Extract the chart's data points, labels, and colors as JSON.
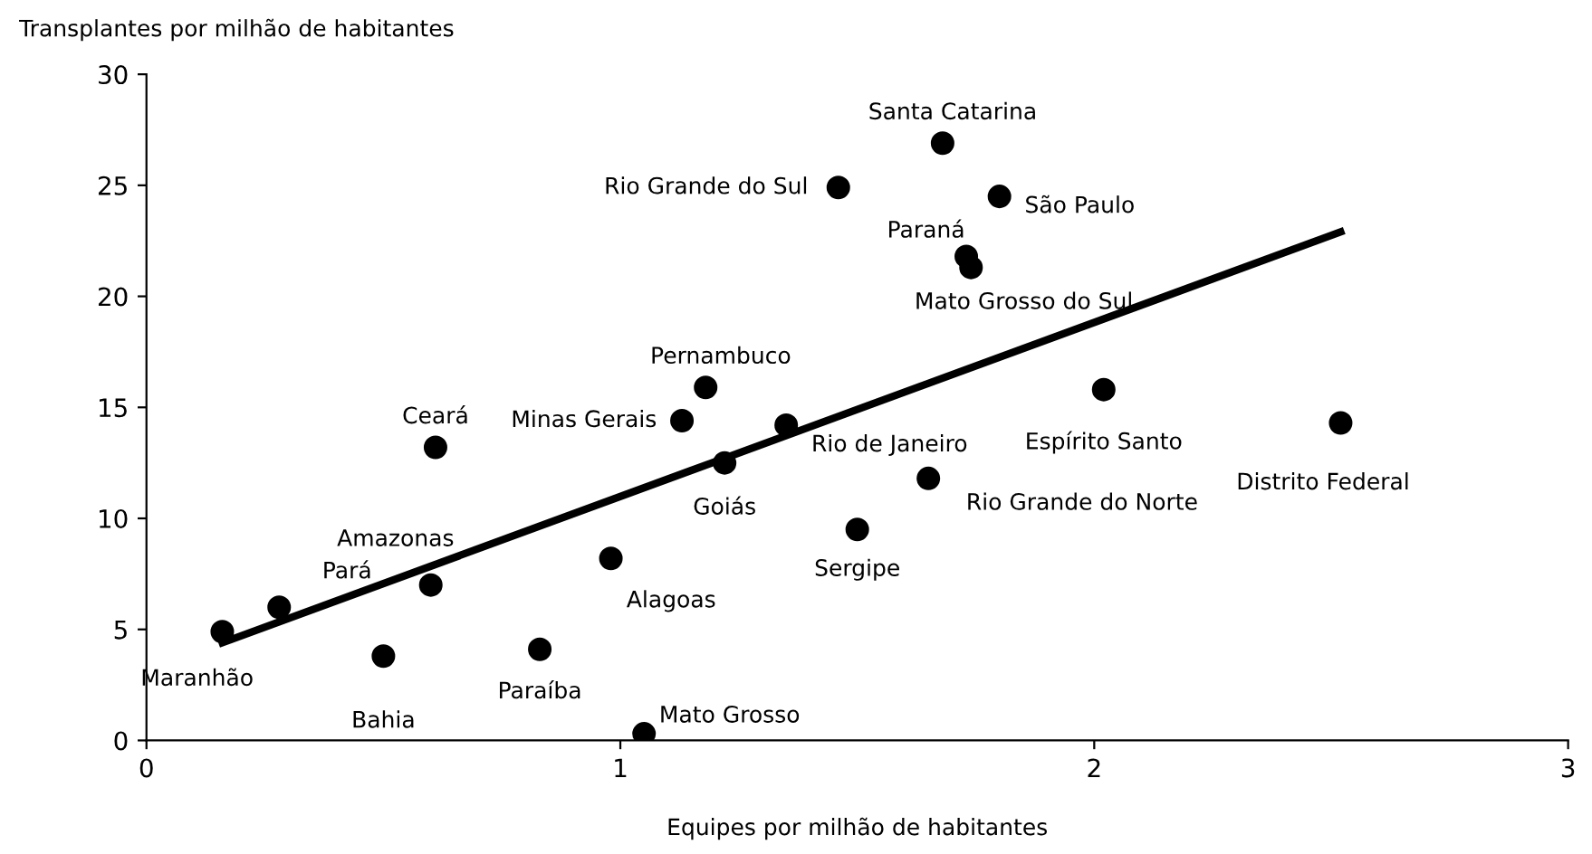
{
  "chart_data": {
    "type": "scatter",
    "xlabel": "Equipes por milhão de habitantes",
    "ylabel": "Transplantes por milhão de habitantes",
    "series": [
      {
        "type": "scatter",
        "color": "#000000",
        "marker": "circle",
        "x": [
          0.16,
          0.28,
          0.5,
          0.6,
          0.61,
          0.83,
          0.98,
          1.05,
          1.13,
          1.18,
          1.22,
          1.35,
          1.68,
          1.46,
          1.8,
          1.73,
          1.74,
          2.02,
          2.52,
          1.65,
          1.5
        ],
        "values": [
          4.9,
          6.0,
          3.8,
          7.0,
          13.2,
          4.1,
          8.2,
          0.3,
          14.4,
          15.9,
          12.5,
          14.2,
          26.9,
          24.9,
          24.5,
          21.8,
          21.3,
          15.8,
          14.3,
          11.8,
          9.5
        ]
      },
      {
        "type": "line",
        "color": "#000000",
        "marker": "none",
        "line_style": "solid",
        "x": [
          0.16,
          2.52
        ],
        "values": [
          4.4,
          22.9
        ]
      }
    ],
    "annotations": [
      {
        "text": "Maranhão",
        "x": 0.16,
        "y": 4.9
      },
      {
        "text": "Pará",
        "x": 0.28,
        "y": 6.0
      },
      {
        "text": "Bahia",
        "x": 0.5,
        "y": 3.8
      },
      {
        "text": "Amazonas",
        "x": 0.6,
        "y": 7.0
      },
      {
        "text": "Ceará",
        "x": 0.61,
        "y": 13.2
      },
      {
        "text": "Paraíba",
        "x": 0.83,
        "y": 4.1
      },
      {
        "text": "Alagoas",
        "x": 0.98,
        "y": 8.2
      },
      {
        "text": "Mato Grosso",
        "x": 1.05,
        "y": 0.3
      },
      {
        "text": "Minas Gerais",
        "x": 1.13,
        "y": 14.4
      },
      {
        "text": "Pernambuco",
        "x": 1.18,
        "y": 15.9
      },
      {
        "text": "Goiás",
        "x": 1.22,
        "y": 12.5
      },
      {
        "text": "Rio de Janeiro",
        "x": 1.35,
        "y": 14.2
      },
      {
        "text": "Santa Catarina",
        "x": 1.68,
        "y": 26.9
      },
      {
        "text": "Rio Grande do Sul",
        "x": 1.46,
        "y": 24.9
      },
      {
        "text": "São Paulo",
        "x": 1.8,
        "y": 24.5
      },
      {
        "text": "Paraná",
        "x": 1.73,
        "y": 21.8
      },
      {
        "text": "Mato Grosso do Sul",
        "x": 1.74,
        "y": 21.3
      },
      {
        "text": "Espírito Santo",
        "x": 2.02,
        "y": 15.8
      },
      {
        "text": "Distrito Federal",
        "x": 2.52,
        "y": 14.3
      },
      {
        "text": "Rio Grande do Norte",
        "x": 1.65,
        "y": 11.8
      },
      {
        "text": "Sergipe",
        "x": 1.5,
        "y": 9.5
      }
    ],
    "xlim": [
      0,
      3
    ],
    "xticks": [
      0,
      1,
      2,
      3
    ],
    "ylim": [
      0,
      30
    ],
    "yticks": [
      0,
      5,
      10,
      15,
      20,
      25,
      30
    ],
    "grid": false,
    "legend": false
  }
}
